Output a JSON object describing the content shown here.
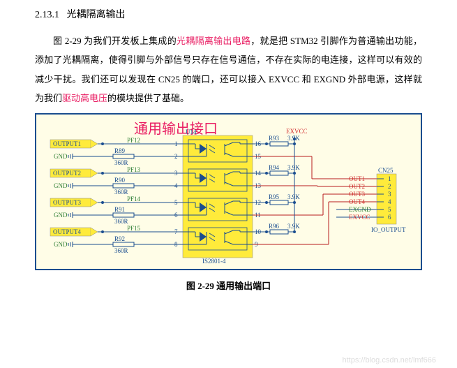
{
  "section": {
    "number": "2.13.1",
    "title": "光耦隔离输出"
  },
  "paragraph": {
    "p1a": "图 2-29 为我们开发板上集成的",
    "hl1": "光耦隔离输出电路",
    "p1b": "，就是把 STM32 引脚作为普通输出功能，添加了光耦隔离，使得引脚与外部信号只存在信号通信，不存在实际的电连接，这样可以有效的减少干扰。我们还可以发现在 CN25 的端口，还可以接入 EXVCC 和 EXGND 外部电源，这样就为我们",
    "hl2": "驱动高电压",
    "p1c": "的模块提供了基础。"
  },
  "figure": {
    "title": "通用输出接口",
    "caption_prefix": "图 2-29",
    "caption_text": "通用输出端口",
    "chip": {
      "ref": "U14",
      "part": "IS2801-4"
    },
    "connector": {
      "ref": "CN25",
      "label": "IO_OUTPUT"
    },
    "exvcc": "EXVCC",
    "outputs": [
      {
        "box": "OUTPUT1",
        "pf": "PF12",
        "r_in": "R89",
        "r_in_val": "360R",
        "pin_a": "1",
        "pin_b": "2",
        "pin_c": "16",
        "pin_d": "15",
        "r_out": "R93",
        "r_out_val": "3.9K"
      },
      {
        "box": "OUTPUT2",
        "pf": "PF13",
        "r_in": "R90",
        "r_in_val": "360R",
        "pin_a": "3",
        "pin_b": "4",
        "pin_c": "14",
        "pin_d": "13",
        "r_out": "R94",
        "r_out_val": "3.9K"
      },
      {
        "box": "OUTPUT3",
        "pf": "PF14",
        "r_in": "R91",
        "r_in_val": "360R",
        "pin_a": "5",
        "pin_b": "6",
        "pin_c": "12",
        "pin_d": "11",
        "r_out": "R95",
        "r_out_val": "3.9K"
      },
      {
        "box": "OUTPUT4",
        "pf": "PF15",
        "r_in": "R92",
        "r_in_val": "360R",
        "pin_a": "7",
        "pin_b": "8",
        "pin_c": "10",
        "pin_d": "9",
        "r_out": "R96",
        "r_out_val": "3.9K"
      }
    ],
    "cn25_pins": [
      {
        "n": "1",
        "label": "OUT1",
        "color": "red"
      },
      {
        "n": "2",
        "label": "OUT2",
        "color": "red"
      },
      {
        "n": "3",
        "label": "OUT3",
        "color": "red"
      },
      {
        "n": "4",
        "label": "OUT4",
        "color": "red"
      },
      {
        "n": "5",
        "label": "EXGND",
        "color": "green"
      },
      {
        "n": "6",
        "label": "EXVCC",
        "color": "red"
      }
    ],
    "gnd": "GND"
  },
  "watermark": "https://blog.csdn.net/lmf666"
}
